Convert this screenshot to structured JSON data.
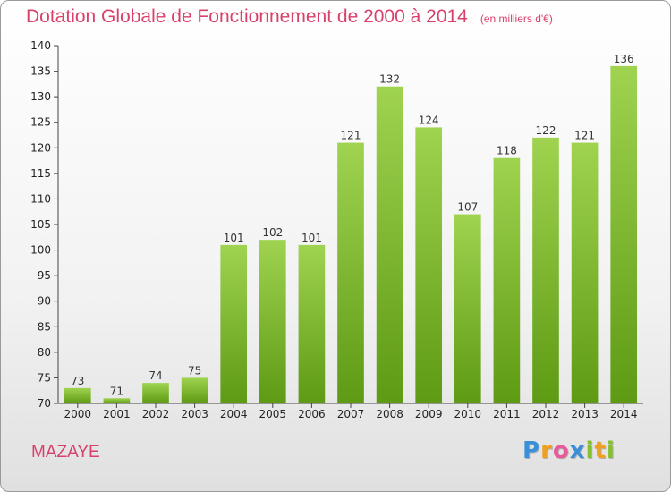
{
  "header": {
    "title": "Dotation Globale de Fonctionnement de 2000 à 2014",
    "subtitle": "(en milliers d'€)"
  },
  "footer": {
    "commune": "MAZAYE",
    "brand": "Proxiti"
  },
  "colors": {
    "title": "#d8416a",
    "bar_top": "#9fd350",
    "bar_bottom": "#5e9a14",
    "axis": "#444444"
  },
  "chart_data": {
    "type": "bar",
    "title": "Dotation Globale de Fonctionnement de 2000 à 2014",
    "subtitle": "(en milliers d'€)",
    "xlabel": "",
    "ylabel": "",
    "categories": [
      "2000",
      "2001",
      "2002",
      "2003",
      "2004",
      "2005",
      "2006",
      "2007",
      "2008",
      "2009",
      "2010",
      "2011",
      "2012",
      "2013",
      "2014"
    ],
    "values": [
      73,
      71,
      74,
      75,
      101,
      102,
      101,
      121,
      132,
      124,
      107,
      118,
      122,
      121,
      136
    ],
    "ylim": [
      70,
      140
    ],
    "yticks": [
      70,
      75,
      80,
      85,
      90,
      95,
      100,
      105,
      110,
      115,
      120,
      125,
      130,
      135,
      140
    ],
    "grid": false,
    "legend": "none"
  }
}
